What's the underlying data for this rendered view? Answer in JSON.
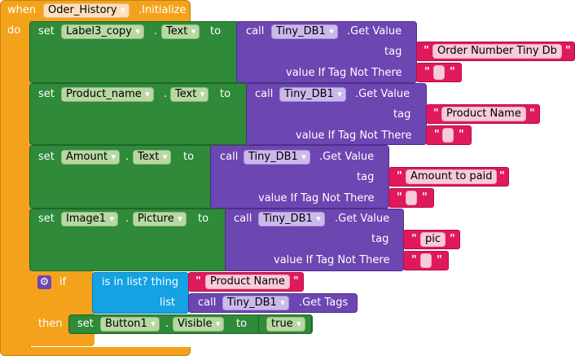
{
  "event": {
    "when": "when",
    "component": "Oder_History",
    "event_name": ".Initialize",
    "do": "do"
  },
  "blocks": [
    {
      "set": "set",
      "component": "Label3_copy",
      "dot": ".",
      "property": "Text",
      "to": "to",
      "call": "call",
      "db": "Tiny_DB1",
      "method": ".Get Value",
      "tag_label": "tag",
      "tag_value": "Order Number Tiny Db",
      "not_there_label": "value If Tag Not There"
    },
    {
      "set": "set",
      "component": "Product_name",
      "dot": ".",
      "property": "Text",
      "to": "to",
      "call": "call",
      "db": "Tiny_DB1",
      "method": ".Get Value",
      "tag_label": "tag",
      "tag_value": "Product Name",
      "not_there_label": "value If Tag Not There"
    },
    {
      "set": "set",
      "component": "Amount",
      "dot": ".",
      "property": "Text",
      "to": "to",
      "call": "call",
      "db": "Tiny_DB1",
      "method": ".Get Value",
      "tag_label": "tag",
      "tag_value": "Amount to paid",
      "not_there_label": "value If Tag Not There"
    },
    {
      "set": "set",
      "component": "Image1",
      "dot": ".",
      "property": "Picture",
      "to": "to",
      "call": "call",
      "db": "Tiny_DB1",
      "method": ".Get Value",
      "tag_label": "tag",
      "tag_value": "pic",
      "not_there_label": "value If Tag Not There"
    }
  ],
  "if_block": {
    "if": "if",
    "is_in_list": "is in list? thing",
    "thing_value": "Product Name",
    "list": "list",
    "call": "call",
    "db": "Tiny_DB1",
    "method": ".Get Tags",
    "then": "then",
    "set": "set",
    "component": "Button1",
    "dot": ".",
    "property": "Visible",
    "to": "to",
    "value": "true"
  },
  "quote": "\"",
  "colors": {
    "event": "#f4a21c",
    "set": "#2f8a3a",
    "call": "#6c46b1",
    "text": "#e0195d",
    "logic": "#14a2e3"
  },
  "icons": {
    "mutator": "gear-icon",
    "dropdown": "chevron-down-icon"
  }
}
